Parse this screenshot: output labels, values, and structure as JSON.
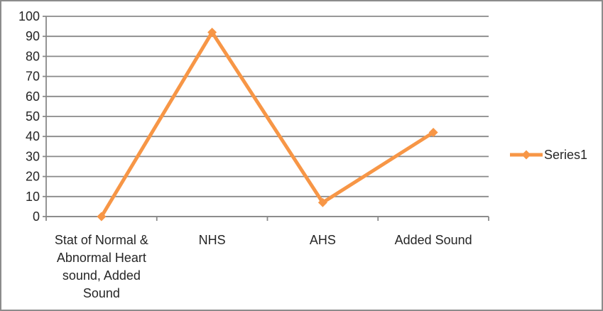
{
  "chart_data": {
    "type": "line",
    "title": "",
    "xlabel": "",
    "ylabel": "",
    "categories": [
      "Stat of Normal & Abnormal Heart sound, Added Sound",
      "NHS",
      "AHS",
      "Added Sound"
    ],
    "category_display_lines": [
      [
        "Stat of Normal &",
        "Abnormal Heart",
        "sound, Added",
        "Sound"
      ],
      [
        "NHS"
      ],
      [
        "AHS"
      ],
      [
        "Added Sound"
      ]
    ],
    "series": [
      {
        "name": "Series1",
        "values": [
          0,
          92,
          7,
          42
        ],
        "color": "#F79646",
        "marker": "diamond"
      }
    ],
    "ylim": [
      0,
      100
    ],
    "ytick_step": 10,
    "yticks": [
      0,
      10,
      20,
      30,
      40,
      50,
      60,
      70,
      80,
      90,
      100
    ],
    "grid": true,
    "legend": {
      "position": "right",
      "entries": [
        "Series1"
      ]
    },
    "colors": {
      "series": "#F79646",
      "gridline": "#898989",
      "axis": "#898989",
      "tick": "#898989",
      "text": "#262626",
      "frame_border": "#8C8C8C",
      "background": "#FFFFFF"
    }
  }
}
